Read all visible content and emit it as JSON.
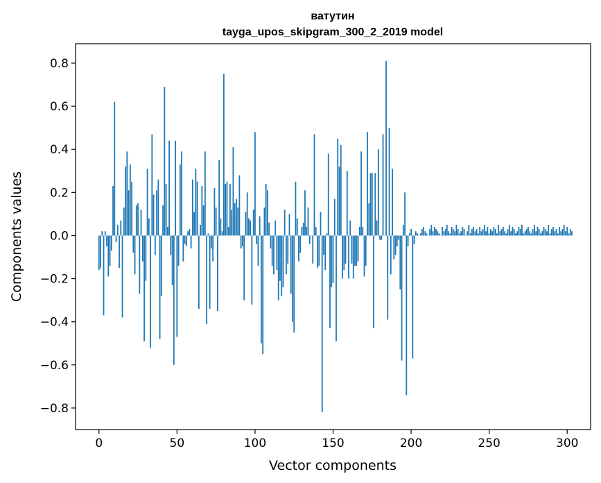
{
  "chart_data": {
    "type": "bar",
    "title": "ватутин",
    "subtitle": "tayga_upos_skipgram_300_2_2019 model",
    "xlabel": "Vector components",
    "ylabel": "Components values",
    "xlim": [
      -15,
      315
    ],
    "ylim": [
      -0.9,
      0.89
    ],
    "xticks": [
      0,
      50,
      100,
      150,
      200,
      250,
      300
    ],
    "xtick_labels": [
      "0",
      "50",
      "100",
      "150",
      "200",
      "250",
      "300"
    ],
    "yticks": [
      -0.8,
      -0.6,
      -0.4,
      -0.2,
      0.0,
      0.2,
      0.4,
      0.6,
      0.8
    ],
    "ytick_labels": [
      "−0.8",
      "−0.6",
      "−0.4",
      "−0.2",
      "0.0",
      "0.2",
      "0.4",
      "0.6",
      "0.8"
    ],
    "bar_color": "#1f77b4",
    "values": [
      -0.16,
      -0.15,
      0.02,
      -0.37,
      0.02,
      -0.05,
      -0.19,
      -0.14,
      -0.07,
      0.23,
      0.62,
      -0.03,
      0.05,
      -0.15,
      0.07,
      -0.38,
      0.13,
      0.32,
      0.39,
      0.21,
      0.33,
      0.25,
      -0.08,
      -0.18,
      0.14,
      0.15,
      -0.27,
      0.12,
      -0.12,
      -0.49,
      -0.21,
      0.31,
      0.08,
      -0.52,
      0.47,
      0.19,
      -0.09,
      0.21,
      0.26,
      -0.48,
      -0.28,
      0.14,
      0.69,
      0.24,
      0.04,
      0.44,
      -0.09,
      -0.23,
      -0.6,
      0.44,
      -0.47,
      -0.14,
      0.33,
      0.39,
      -0.12,
      -0.04,
      -0.05,
      0.02,
      0.03,
      -0.06,
      0.26,
      0.11,
      0.31,
      0.25,
      -0.34,
      0.05,
      0.23,
      0.14,
      0.39,
      -0.41,
      0.01,
      -0.34,
      -0.06,
      -0.12,
      0.22,
      0.13,
      -0.35,
      0.35,
      0.08,
      0.02,
      0.75,
      0.24,
      0.25,
      0.04,
      0.24,
      0.12,
      0.41,
      0.15,
      0.17,
      0.13,
      0.28,
      -0.06,
      -0.05,
      -0.3,
      0.11,
      0.2,
      0.08,
      0.07,
      -0.32,
      0.12,
      0.48,
      -0.04,
      -0.14,
      0.09,
      -0.5,
      -0.55,
      0.13,
      0.24,
      0.21,
      0.06,
      -0.06,
      -0.14,
      -0.18,
      0.07,
      -0.16,
      -0.3,
      -0.21,
      -0.28,
      -0.24,
      0.12,
      -0.18,
      -0.13,
      0.1,
      -0.27,
      -0.4,
      -0.45,
      0.25,
      0.08,
      -0.12,
      -0.08,
      0.04,
      0.06,
      0.21,
      0.04,
      0.13,
      -0.04,
      0.0,
      -0.13,
      0.47,
      0.04,
      -0.15,
      -0.14,
      0.11,
      -0.82,
      -0.09,
      -0.16,
      0.01,
      0.38,
      -0.43,
      -0.24,
      -0.22,
      0.17,
      -0.49,
      0.45,
      0.32,
      0.42,
      -0.2,
      -0.16,
      -0.13,
      0.3,
      -0.2,
      0.07,
      -0.13,
      -0.2,
      -0.14,
      -0.14,
      -0.12,
      0.04,
      0.39,
      0.04,
      -0.19,
      -0.14,
      0.48,
      0.15,
      0.29,
      0.29,
      -0.43,
      0.29,
      0.07,
      0.4,
      -0.02,
      -0.02,
      0.47,
      0.0,
      0.81,
      -0.39,
      0.5,
      -0.18,
      0.31,
      -0.11,
      -0.09,
      -0.05,
      -0.02,
      -0.25,
      -0.58,
      0.05,
      0.2,
      -0.74,
      -0.05,
      0.01,
      0.03,
      -0.57,
      -0.04,
      0.02,
      0.01,
      0.0,
      0.01,
      0.03,
      0.04,
      0.02,
      0.01,
      0.0,
      0.03,
      0.05,
      0.02,
      0.04,
      0.03,
      0.02,
      0.01,
      0.0,
      0.04,
      0.02,
      0.03,
      0.05,
      0.02,
      0.01,
      0.04,
      0.03,
      0.02,
      0.05,
      0.03,
      0.01,
      0.02,
      0.04,
      0.03,
      0.0,
      0.02,
      0.05,
      0.01,
      0.03,
      0.04,
      0.02,
      0.03,
      0.01,
      0.04,
      0.02,
      0.03,
      0.05,
      0.02,
      0.04,
      0.01,
      0.03,
      0.02,
      0.04,
      0.03,
      0.01,
      0.05,
      0.02,
      0.03,
      0.04,
      0.02,
      0.01,
      0.03,
      0.05,
      0.02,
      0.04,
      0.03,
      0.01,
      0.02,
      0.04,
      0.03,
      0.05,
      0.01,
      0.02,
      0.03,
      0.04,
      0.02,
      0.01,
      0.03,
      0.05,
      0.02,
      0.04,
      0.03,
      0.01,
      0.02,
      0.04,
      0.03,
      0.02,
      0.05,
      0.01,
      0.03,
      0.04,
      0.02,
      0.03,
      0.01,
      0.04,
      0.02,
      0.03,
      0.05,
      0.02,
      0.04,
      0.01,
      0.03,
      0.02
    ]
  }
}
